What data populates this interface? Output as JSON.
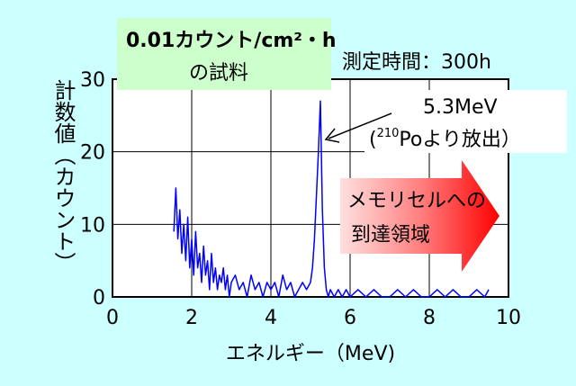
{
  "chart_data": {
    "type": "line",
    "xlabel": "エネルギー（MeV)",
    "ylabel": "計数値（カウント）",
    "xlim": [
      0,
      10
    ],
    "ylim": [
      0,
      30
    ],
    "x_ticks": [
      "0",
      "2",
      "4",
      "6",
      "8",
      "10"
    ],
    "y_ticks": [
      "0",
      "10",
      "20",
      "30"
    ],
    "grid": true,
    "series": [
      {
        "color": "#0000ff",
        "x": [
          1.55,
          1.6,
          1.65,
          1.7,
          1.75,
          1.8,
          1.85,
          1.9,
          1.95,
          2.0,
          2.05,
          2.1,
          2.15,
          2.2,
          2.25,
          2.3,
          2.35,
          2.4,
          2.45,
          2.5,
          2.55,
          2.6,
          2.65,
          2.7,
          2.75,
          2.8,
          2.85,
          2.9,
          2.95,
          3.0,
          3.1,
          3.2,
          3.3,
          3.4,
          3.5,
          3.6,
          3.7,
          3.8,
          3.9,
          4.0,
          4.1,
          4.2,
          4.3,
          4.4,
          4.5,
          4.6,
          4.7,
          4.8,
          4.9,
          5.0,
          5.05,
          5.1,
          5.15,
          5.2,
          5.25,
          5.3,
          5.35,
          5.4,
          5.45,
          5.5,
          5.6,
          5.7,
          5.8,
          5.9,
          6.0,
          6.2,
          6.4,
          6.6,
          6.8,
          7.0,
          7.2,
          7.4,
          7.6,
          7.8,
          8.0,
          8.2,
          8.4,
          8.6,
          8.8,
          9.0,
          9.2,
          9.4,
          9.5
        ],
        "values": [
          9,
          15,
          8,
          12,
          6,
          10,
          5,
          11,
          4,
          8,
          3,
          9,
          4,
          6,
          2,
          7,
          3,
          5,
          1,
          6,
          2,
          4,
          1,
          3,
          2,
          4,
          1,
          3,
          0,
          2,
          3,
          1,
          2,
          0,
          3,
          1,
          2,
          0,
          2,
          1,
          2,
          0,
          3,
          1,
          2,
          0,
          1,
          2,
          1,
          2,
          4,
          8,
          14,
          20,
          27,
          12,
          4,
          1,
          0,
          1,
          0,
          1,
          0,
          1,
          0,
          1,
          0,
          1,
          0,
          0,
          1,
          0,
          1,
          0,
          0,
          1,
          0,
          1,
          0,
          0,
          1,
          0,
          1
        ]
      }
    ],
    "annotations": {
      "sample_line1": "0.01カウント/cm²・h",
      "sample_line2": "の試料",
      "time": "測定時間：300h",
      "peak_line1": "5.3MeV",
      "peak_line2_sup": "210",
      "peak_line2_rest": "Poより放出）",
      "peak_line2_open": "(",
      "arrow_line1": "メモリセルへの",
      "arrow_line2": "到達領域"
    }
  }
}
